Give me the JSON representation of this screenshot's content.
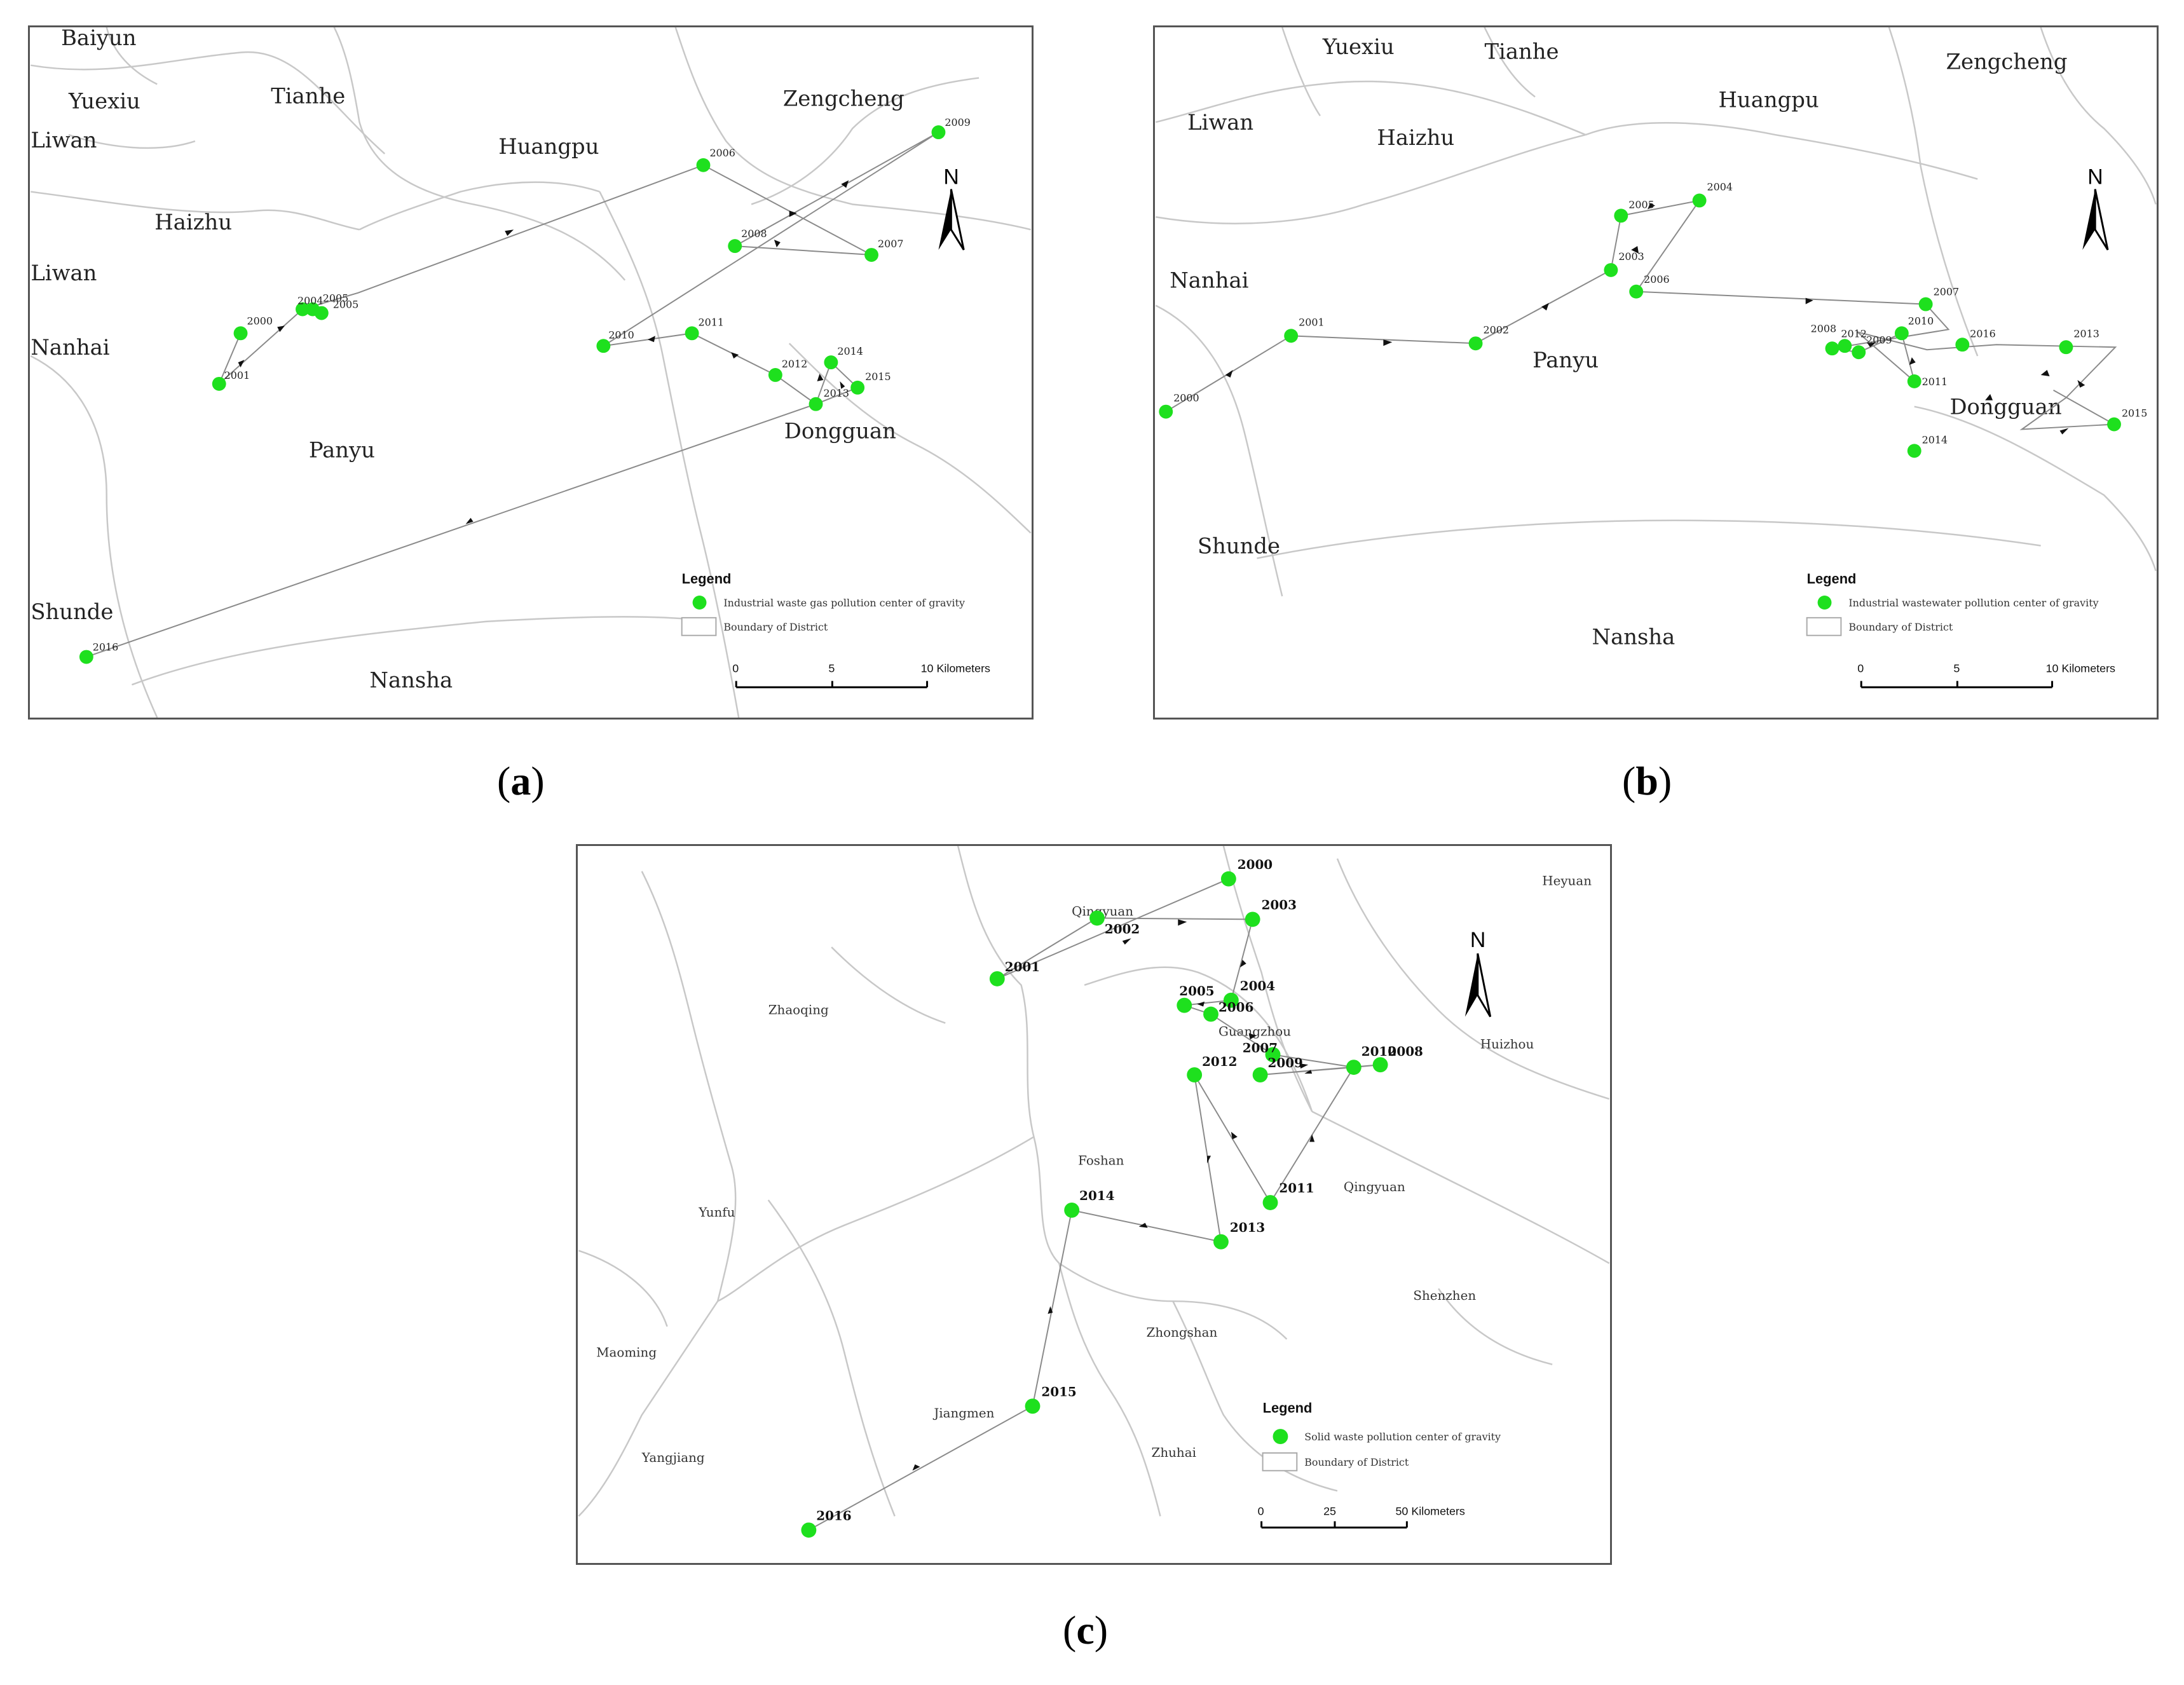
{
  "panels": [
    {
      "caption_letter": "a",
      "districts": [
        "Baiyun",
        "Yuexiu",
        "Tianhe",
        "Liwan",
        "Huangpu",
        "Zengcheng",
        "Haizhu",
        "Liwan",
        "Nanhai",
        "Panyu",
        "Dongguan",
        "Shunde",
        "Nansha"
      ],
      "years": [
        "2000",
        "2001",
        "2004",
        "2005",
        "2006",
        "2007",
        "2008",
        "2009",
        "2010",
        "2011",
        "2012",
        "2013",
        "2014",
        "2015",
        "2016",
        "2005"
      ],
      "legend": {
        "title": "Legend",
        "point_label": "Industrial waste gas pollution center of gravity",
        "boundary_label": "Boundary of District"
      },
      "scale": {
        "ticks": [
          "0",
          "5",
          "10 Kilometers"
        ]
      },
      "north": "N"
    },
    {
      "caption_letter": "b",
      "districts": [
        "Yuexiu",
        "Tianhe",
        "Liwan",
        "Haizhu",
        "Huangpu",
        "Zengcheng",
        "Nanhai",
        "Panyu",
        "Dongguan",
        "Shunde",
        "Nansha"
      ],
      "years": [
        "2000",
        "2001",
        "2002",
        "2003",
        "2004",
        "2005",
        "2006",
        "2007",
        "2008",
        "2012",
        "2009",
        "2010",
        "2011",
        "2016",
        "2013",
        "2015",
        "2014"
      ],
      "legend": {
        "title": "Legend",
        "point_label": "Industrial wastewater pollution center of gravity",
        "boundary_label": "Boundary of District"
      },
      "scale": {
        "ticks": [
          "0",
          "5",
          "10 Kilometers"
        ]
      },
      "north": "N"
    },
    {
      "caption_letter": "c",
      "districts": [
        "Heyuan",
        "Qingyuan",
        "Zhaoqing",
        "Guangzhou",
        "Huizhou",
        "Foshan",
        "Qingyuan",
        "Yunfu",
        "Shenzhen",
        "Zhongshan",
        "Maoming",
        "Jiangmen",
        "Yangjiang",
        "Zhuhai"
      ],
      "years": [
        "2000",
        "2001",
        "2002",
        "2003",
        "2004",
        "2005",
        "2006",
        "2007",
        "2009",
        "2010",
        "2008",
        "2012",
        "2011",
        "2013",
        "2014",
        "2015",
        "2016"
      ],
      "legend": {
        "title": "Legend",
        "point_label": "Solid waste pollution center of gravity",
        "boundary_label": "Boundary of District"
      },
      "scale": {
        "ticks": [
          "0",
          "25",
          "50 Kilometers"
        ]
      },
      "north": "N"
    }
  ],
  "colors": {
    "point": "#1ee01e",
    "boundary": "#c8c8c8",
    "track": "#8a8a8a"
  }
}
